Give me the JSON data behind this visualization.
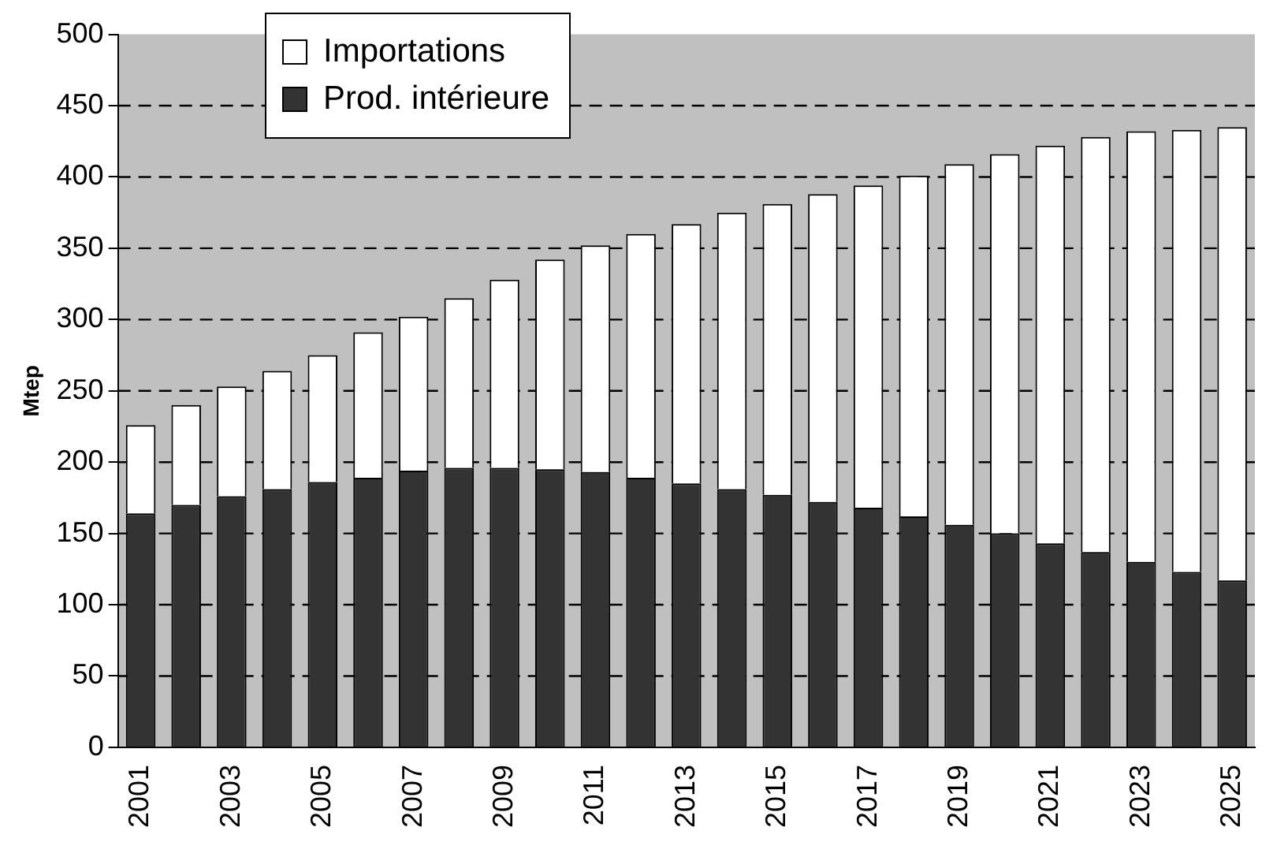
{
  "chart_data": {
    "type": "bar",
    "ylabel": "Mtep",
    "stacked": true,
    "categories": [
      "2001",
      null,
      "2003",
      null,
      "2005",
      null,
      "2007",
      null,
      "2009",
      null,
      "2011",
      null,
      "2013",
      null,
      "2015",
      null,
      "2017",
      null,
      "2019",
      null,
      "2021",
      null,
      "2023",
      null,
      "2025"
    ],
    "series": [
      {
        "name": "Prod. intérieure",
        "color": "#333333",
        "values": [
          164,
          170,
          176,
          181,
          186,
          189,
          194,
          196,
          196,
          195,
          193,
          189,
          185,
          181,
          177,
          172,
          168,
          162,
          156,
          150,
          143,
          137,
          130,
          123,
          117
        ]
      },
      {
        "name": "Importations",
        "color": "#ffffff",
        "values": [
          62,
          70,
          77,
          83,
          89,
          102,
          108,
          119,
          132,
          147,
          159,
          171,
          182,
          194,
          204,
          216,
          226,
          239,
          253,
          266,
          279,
          291,
          302,
          310,
          318
        ]
      }
    ],
    "ylim": [
      0,
      500
    ],
    "yticks": [
      0,
      50,
      100,
      150,
      200,
      250,
      300,
      350,
      400,
      450,
      500
    ],
    "grid": "y",
    "legend": "top left"
  }
}
